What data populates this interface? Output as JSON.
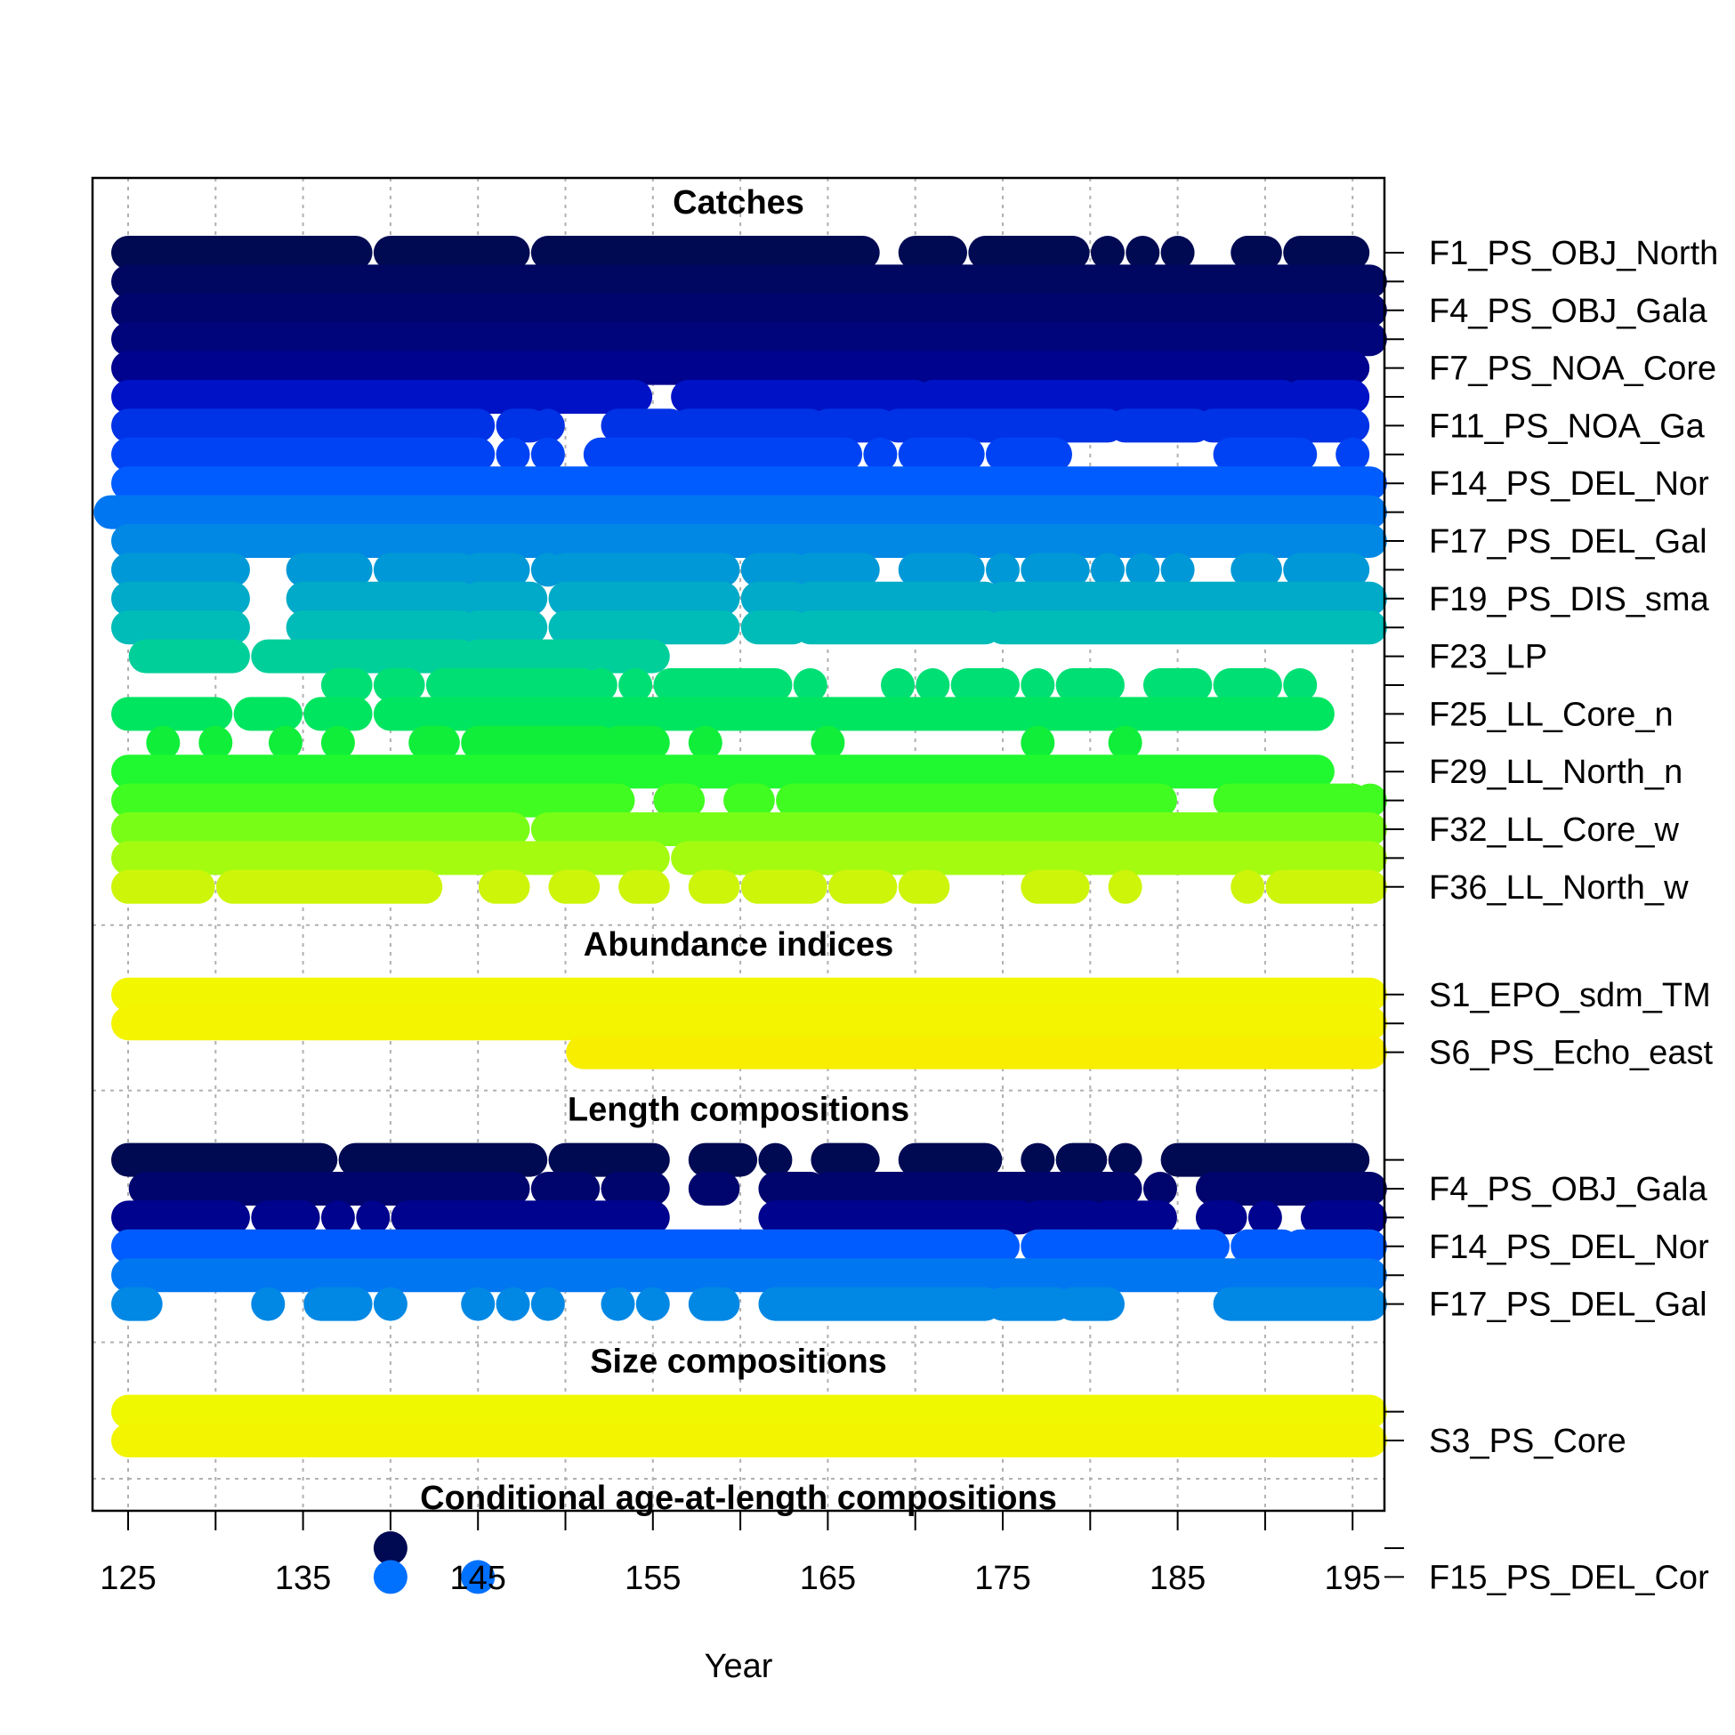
{
  "chart_data": {
    "type": "scatter",
    "xlabel": "Year",
    "xlim": [
      123,
      197
    ],
    "x_ticks": [
      125,
      130,
      135,
      140,
      145,
      150,
      155,
      160,
      165,
      170,
      175,
      180,
      185,
      190,
      195
    ],
    "x_tick_labels": [
      "125",
      "135",
      "145",
      "155",
      "165",
      "175",
      "185",
      "195"
    ],
    "grid": true,
    "sections": [
      {
        "title": "Catches",
        "rows": [
          {
            "label": "F1_PS_OBJ_North",
            "color": "#000a52",
            "runs": [
              [
                125,
                138
              ],
              [
                140,
                147
              ],
              [
                149,
                167
              ],
              [
                170,
                172
              ],
              [
                174,
                179
              ],
              [
                181,
                181
              ],
              [
                183,
                183
              ],
              [
                185,
                185
              ],
              [
                189,
                190
              ],
              [
                192,
                195
              ]
            ]
          },
          {
            "label": "",
            "color": "#000760",
            "runs": [
              [
                125,
                196
              ]
            ]
          },
          {
            "label": "F4_PS_OBJ_Gala",
            "color": "#00056e",
            "runs": [
              [
                125,
                196
              ]
            ]
          },
          {
            "label": "",
            "color": "#00057c",
            "runs": [
              [
                125,
                196
              ]
            ]
          },
          {
            "label": "F7_PS_NOA_Core",
            "color": "#00038e",
            "runs": [
              [
                125,
                195
              ]
            ]
          },
          {
            "label": "",
            "color": "#0012c6",
            "runs": [
              [
                125,
                154
              ],
              [
                157,
                170
              ],
              [
                171,
                191
              ],
              [
                192,
                195
              ]
            ]
          },
          {
            "label": "F11_PS_NOA_Ga",
            "color": "#0032e6",
            "runs": [
              [
                125,
                145
              ],
              [
                147,
                148
              ],
              [
                149,
                149
              ],
              [
                153,
                156
              ],
              [
                157,
                164
              ],
              [
                165,
                168
              ],
              [
                169,
                181
              ],
              [
                182,
                186
              ],
              [
                187,
                195
              ]
            ]
          },
          {
            "label": "",
            "color": "#0043f4",
            "runs": [
              [
                125,
                145
              ],
              [
                147,
                147
              ],
              [
                149,
                149
              ],
              [
                152,
                166
              ],
              [
                168,
                168
              ],
              [
                170,
                173
              ],
              [
                175,
                178
              ],
              [
                188,
                192
              ],
              [
                195,
                195
              ]
            ]
          },
          {
            "label": "F14_PS_DEL_Nor",
            "color": "#005cff",
            "runs": [
              [
                125,
                196
              ]
            ]
          },
          {
            "label": "",
            "color": "#0076f0",
            "runs": [
              [
                124,
                196
              ]
            ]
          },
          {
            "label": "F17_PS_DEL_Gal",
            "color": "#0088e4",
            "runs": [
              [
                125,
                196
              ]
            ]
          },
          {
            "label": "",
            "color": "#0098d6",
            "runs": [
              [
                125,
                131
              ],
              [
                135,
                138
              ],
              [
                140,
                144
              ],
              [
                145,
                147
              ],
              [
                149,
                149
              ],
              [
                150,
                159
              ],
              [
                161,
                163
              ],
              [
                164,
                167
              ],
              [
                170,
                173
              ],
              [
                175,
                175
              ],
              [
                177,
                179
              ],
              [
                181,
                181
              ],
              [
                183,
                183
              ],
              [
                185,
                185
              ],
              [
                189,
                190
              ],
              [
                192,
                195
              ]
            ]
          },
          {
            "label": "F19_PS_DIS_sma",
            "color": "#00aac8",
            "runs": [
              [
                125,
                131
              ],
              [
                135,
                144
              ],
              [
                145,
                148
              ],
              [
                150,
                159
              ],
              [
                161,
                163
              ],
              [
                164,
                174
              ],
              [
                175,
                196
              ]
            ]
          },
          {
            "label": "",
            "color": "#00bcb8",
            "runs": [
              [
                125,
                131
              ],
              [
                135,
                144
              ],
              [
                145,
                148
              ],
              [
                150,
                159
              ],
              [
                161,
                163
              ],
              [
                164,
                174
              ],
              [
                175,
                196
              ]
            ]
          },
          {
            "label": "F23_LP",
            "color": "#00cf9a",
            "runs": [
              [
                126,
                131
              ],
              [
                133,
                144
              ],
              [
                145,
                155
              ]
            ]
          },
          {
            "label": "",
            "color": "#00df74",
            "runs": [
              [
                137,
                138
              ],
              [
                140,
                141
              ],
              [
                143,
                151
              ],
              [
                152,
                152
              ],
              [
                154,
                154
              ],
              [
                156,
                162
              ],
              [
                164,
                164
              ],
              [
                169,
                169
              ],
              [
                171,
                171
              ],
              [
                173,
                175
              ],
              [
                177,
                177
              ],
              [
                179,
                181
              ],
              [
                184,
                186
              ],
              [
                188,
                190
              ],
              [
                192,
                192
              ]
            ]
          },
          {
            "label": "F25_LL_Core_n",
            "color": "#00e560",
            "runs": [
              [
                125,
                130
              ],
              [
                132,
                134
              ],
              [
                136,
                138
              ],
              [
                140,
                193
              ]
            ]
          },
          {
            "label": "",
            "color": "#10ee3a",
            "runs": [
              [
                127,
                127
              ],
              [
                130,
                130
              ],
              [
                134,
                134
              ],
              [
                137,
                137
              ],
              [
                142,
                143
              ],
              [
                145,
                152
              ],
              [
                153,
                155
              ],
              [
                158,
                158
              ],
              [
                165,
                165
              ],
              [
                177,
                177
              ],
              [
                182,
                182
              ]
            ]
          },
          {
            "label": "F29_LL_North_n",
            "color": "#20f830",
            "runs": [
              [
                125,
                193
              ]
            ]
          },
          {
            "label": "",
            "color": "#40fc20",
            "runs": [
              [
                125,
                153
              ],
              [
                156,
                157
              ],
              [
                160,
                161
              ],
              [
                163,
                184
              ],
              [
                188,
                195
              ],
              [
                196,
                196
              ]
            ]
          },
          {
            "label": "F32_LL_Core_w",
            "color": "#78fe16",
            "runs": [
              [
                125,
                147
              ],
              [
                149,
                196
              ]
            ]
          },
          {
            "label": "",
            "color": "#a4fb10",
            "runs": [
              [
                125,
                155
              ],
              [
                157,
                196
              ]
            ]
          },
          {
            "label": "F36_LL_North_w",
            "color": "#cdf50a",
            "runs": [
              [
                125,
                129
              ],
              [
                131,
                142
              ],
              [
                146,
                147
              ],
              [
                150,
                151
              ],
              [
                154,
                155
              ],
              [
                158,
                159
              ],
              [
                161,
                164
              ],
              [
                166,
                168
              ],
              [
                170,
                171
              ],
              [
                177,
                179
              ],
              [
                182,
                182
              ],
              [
                189,
                189
              ],
              [
                191,
                196
              ]
            ]
          }
        ]
      },
      {
        "title": "Abundance indices",
        "rows": [
          {
            "label": "S1_EPO_sdm_TM",
            "color": "#f2f700",
            "runs": [
              [
                125,
                196
              ]
            ]
          },
          {
            "label": "",
            "color": "#f4f400",
            "runs": [
              [
                125,
                196
              ]
            ]
          },
          {
            "label": "S6_PS_Echo_east",
            "color": "#f7ee00",
            "runs": [
              [
                151,
                196
              ]
            ]
          }
        ]
      },
      {
        "title": "Length compositions",
        "rows": [
          {
            "label": "",
            "color": "#000a52",
            "runs": [
              [
                125,
                136
              ],
              [
                138,
                148
              ],
              [
                150,
                155
              ],
              [
                158,
                160
              ],
              [
                162,
                162
              ],
              [
                165,
                167
              ],
              [
                170,
                174
              ],
              [
                177,
                177
              ],
              [
                179,
                180
              ],
              [
                182,
                182
              ],
              [
                185,
                195
              ]
            ]
          },
          {
            "label": "F4_PS_OBJ_Gala",
            "color": "#00056e",
            "runs": [
              [
                126,
                147
              ],
              [
                149,
                151
              ],
              [
                153,
                155
              ],
              [
                158,
                159
              ],
              [
                162,
                164
              ],
              [
                165,
                182
              ],
              [
                184,
                184
              ],
              [
                187,
                196
              ]
            ]
          },
          {
            "label": "",
            "color": "#00038e",
            "runs": [
              [
                125,
                131
              ],
              [
                133,
                135
              ],
              [
                137,
                137
              ],
              [
                139,
                139
              ],
              [
                141,
                155
              ],
              [
                162,
                176
              ],
              [
                177,
                180
              ],
              [
                181,
                184
              ],
              [
                187,
                188
              ],
              [
                190,
                190
              ],
              [
                193,
                196
              ]
            ]
          },
          {
            "label": "F14_PS_DEL_Nor",
            "color": "#005cff",
            "runs": [
              [
                125,
                175
              ],
              [
                177,
                187
              ],
              [
                189,
                191
              ],
              [
                192,
                196
              ]
            ]
          },
          {
            "label": "",
            "color": "#0076f0",
            "runs": [
              [
                125,
                196
              ]
            ]
          },
          {
            "label": "F17_PS_DEL_Gal",
            "color": "#0088e4",
            "runs": [
              [
                125,
                126
              ],
              [
                133,
                133
              ],
              [
                136,
                138
              ],
              [
                140,
                140
              ],
              [
                145,
                145
              ],
              [
                147,
                147
              ],
              [
                149,
                149
              ],
              [
                153,
                153
              ],
              [
                155,
                155
              ],
              [
                158,
                159
              ],
              [
                162,
                174
              ],
              [
                175,
                178
              ],
              [
                179,
                181
              ],
              [
                188,
                196
              ]
            ]
          }
        ]
      },
      {
        "title": "Size compositions",
        "rows": [
          {
            "label": "",
            "color": "#f0f800",
            "runs": [
              [
                125,
                196
              ]
            ]
          },
          {
            "label": "S3_PS_Core",
            "color": "#f2f400",
            "runs": [
              [
                125,
                196
              ]
            ]
          }
        ]
      },
      {
        "title": "Conditional age-at-length compositions",
        "rows": [
          {
            "label": "",
            "color": "#000a52",
            "runs": [
              [
                140,
                140
              ]
            ]
          },
          {
            "label": "F15_PS_DEL_Cor",
            "color": "#0070ff",
            "runs": [
              [
                140,
                140
              ],
              [
                145,
                145
              ]
            ]
          }
        ]
      }
    ]
  }
}
